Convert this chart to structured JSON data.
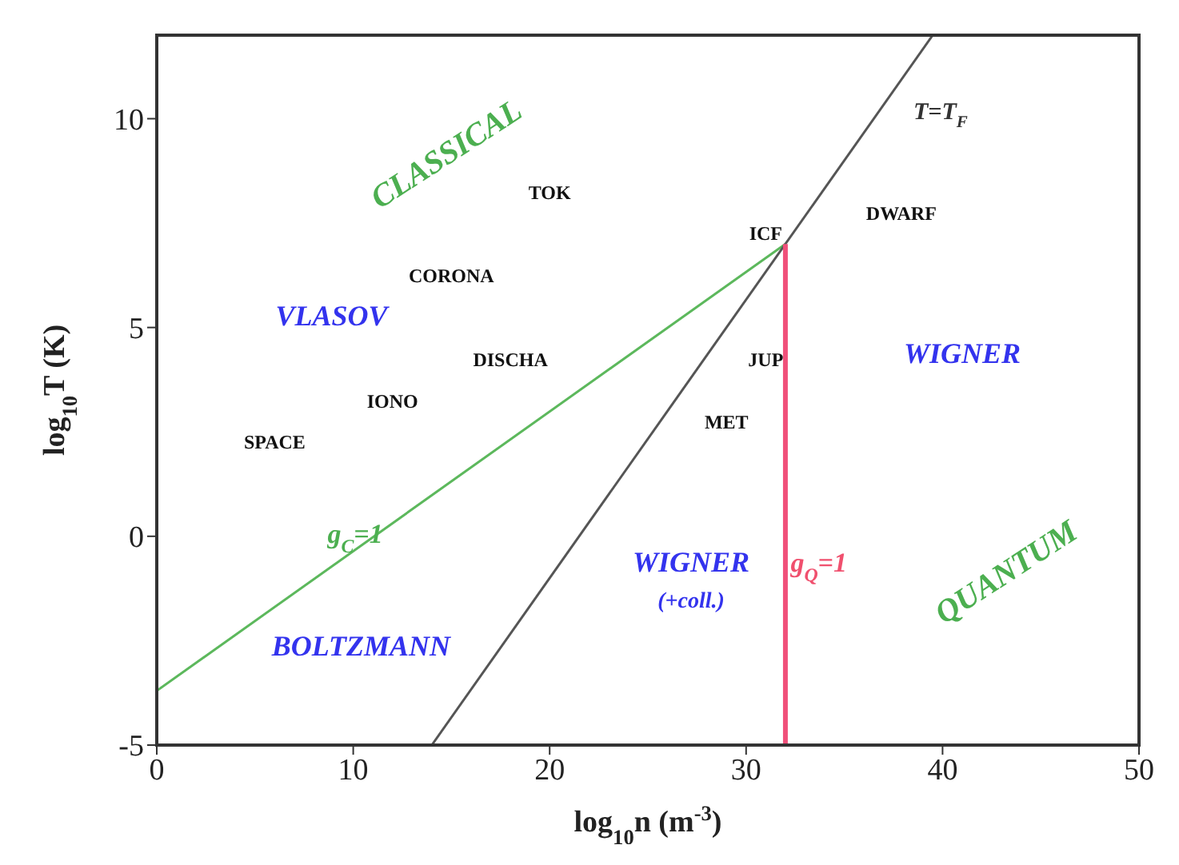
{
  "chart_data": {
    "type": "line",
    "xlabel": "log$_{10}$n (m$^{-3}$)",
    "ylabel": "log$_{10}$T (K)",
    "xlim": [
      0,
      50
    ],
    "xticks": [
      0,
      10,
      20,
      30,
      40,
      50
    ],
    "ylim": [
      -5,
      12
    ],
    "yticks": [
      -5,
      0,
      5,
      10
    ],
    "marker": "none",
    "line_style": "solid",
    "series": [
      {
        "color": "#5cb85c",
        "x": [
          0,
          32
        ],
        "values": [
          -3.7,
          7
        ]
      },
      {
        "color": "#555555",
        "x": [
          14,
          39.5
        ],
        "values": [
          -5,
          12
        ]
      },
      {
        "color": "#f0507a",
        "x": [
          32,
          32
        ],
        "values": [
          -5,
          7
        ]
      }
    ],
    "annotations": [
      "CLASSICAL",
      "TOK",
      "CORONA",
      "VLASOV",
      "DISCHA",
      "IONO",
      "SPACE",
      "ICF",
      "DWARF",
      "T=T$_{F}$",
      "JUP",
      "WIGNER",
      "MET",
      "g$_{C}$=1",
      "BOLTZMANN",
      "WIGNER",
      "(+coll.)",
      "g$_{Q}$=1",
      "QUANTUM"
    ]
  }
}
